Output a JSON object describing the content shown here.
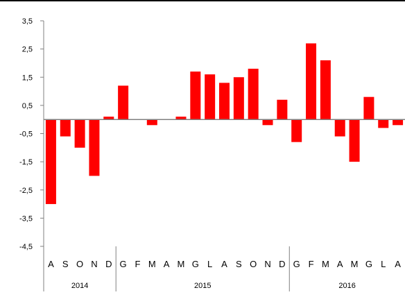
{
  "colors": {
    "bar": "#ff0000",
    "axis": "#808080",
    "background": "#ffffff"
  },
  "chart_data": {
    "type": "bar",
    "categories": [
      "A",
      "S",
      "O",
      "N",
      "D",
      "G",
      "F",
      "M",
      "A",
      "M",
      "G",
      "L",
      "A",
      "S",
      "O",
      "N",
      "D",
      "G",
      "F",
      "M",
      "A",
      "M",
      "G",
      "L",
      "A"
    ],
    "values": [
      -3.0,
      -0.6,
      -1.0,
      -2.0,
      0.1,
      1.2,
      0.0,
      -0.2,
      0.0,
      0.1,
      1.7,
      1.6,
      1.3,
      1.5,
      1.8,
      -0.2,
      0.7,
      -0.8,
      2.7,
      2.1,
      -0.6,
      -1.5,
      0.8,
      -0.3,
      -0.2
    ],
    "yticks": [
      "3,5",
      "2,5",
      "1,5",
      "0,5",
      "-0,5",
      "-1,5",
      "-2,5",
      "-3,5",
      "-4,5"
    ],
    "ytick_values": [
      3.5,
      2.5,
      1.5,
      0.5,
      -0.5,
      -1.5,
      -2.5,
      -3.5,
      -4.5
    ],
    "ylim": [
      -4.5,
      3.5
    ],
    "year_groups": [
      {
        "label": "2014",
        "count": 5
      },
      {
        "label": "2015",
        "count": 12
      },
      {
        "label": "2016",
        "count": 8
      }
    ],
    "grid": false,
    "legend": "none"
  }
}
